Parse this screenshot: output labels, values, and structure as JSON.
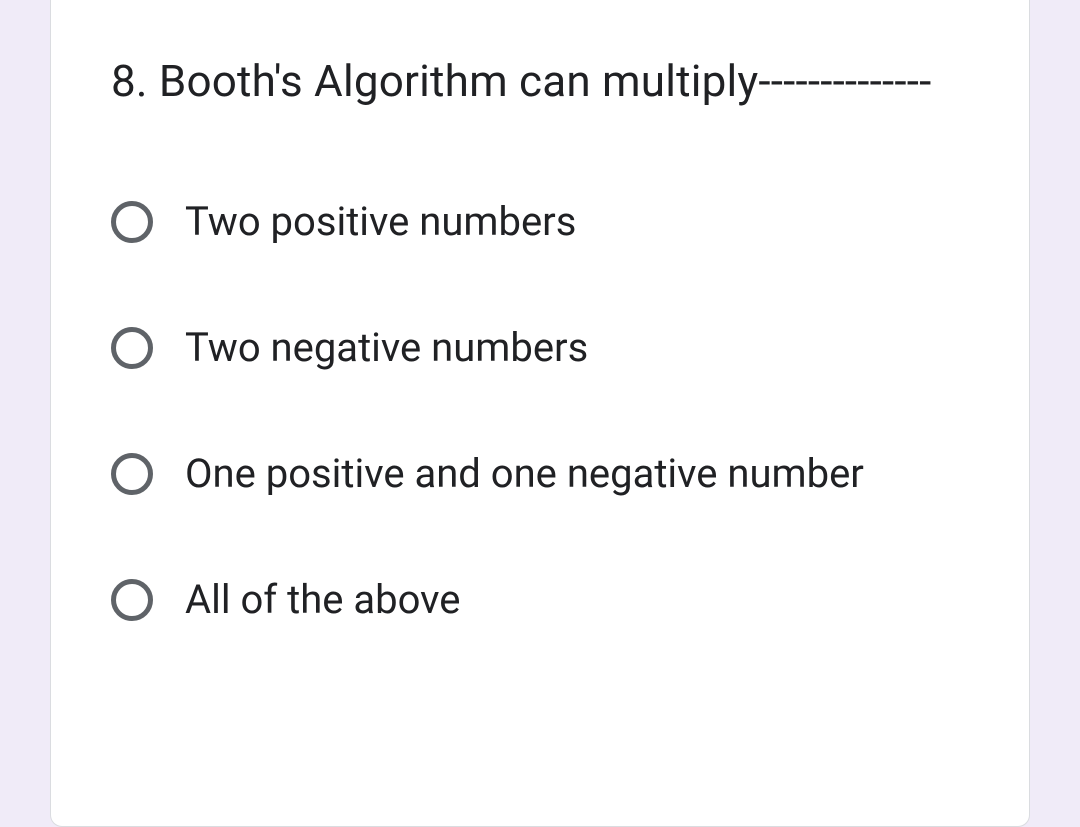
{
  "question": {
    "text": "8. Booth's Algorithm can multiply--------------",
    "options": [
      {
        "label": "Two positive numbers"
      },
      {
        "label": "Two negative numbers"
      },
      {
        "label": "One positive and one negative number"
      },
      {
        "label": "All of the above"
      }
    ]
  },
  "colors": {
    "page_bg": "#f0ebf8",
    "card_bg": "#ffffff",
    "card_border": "#dadce0",
    "text": "#202124",
    "radio_border": "#5f6368"
  }
}
